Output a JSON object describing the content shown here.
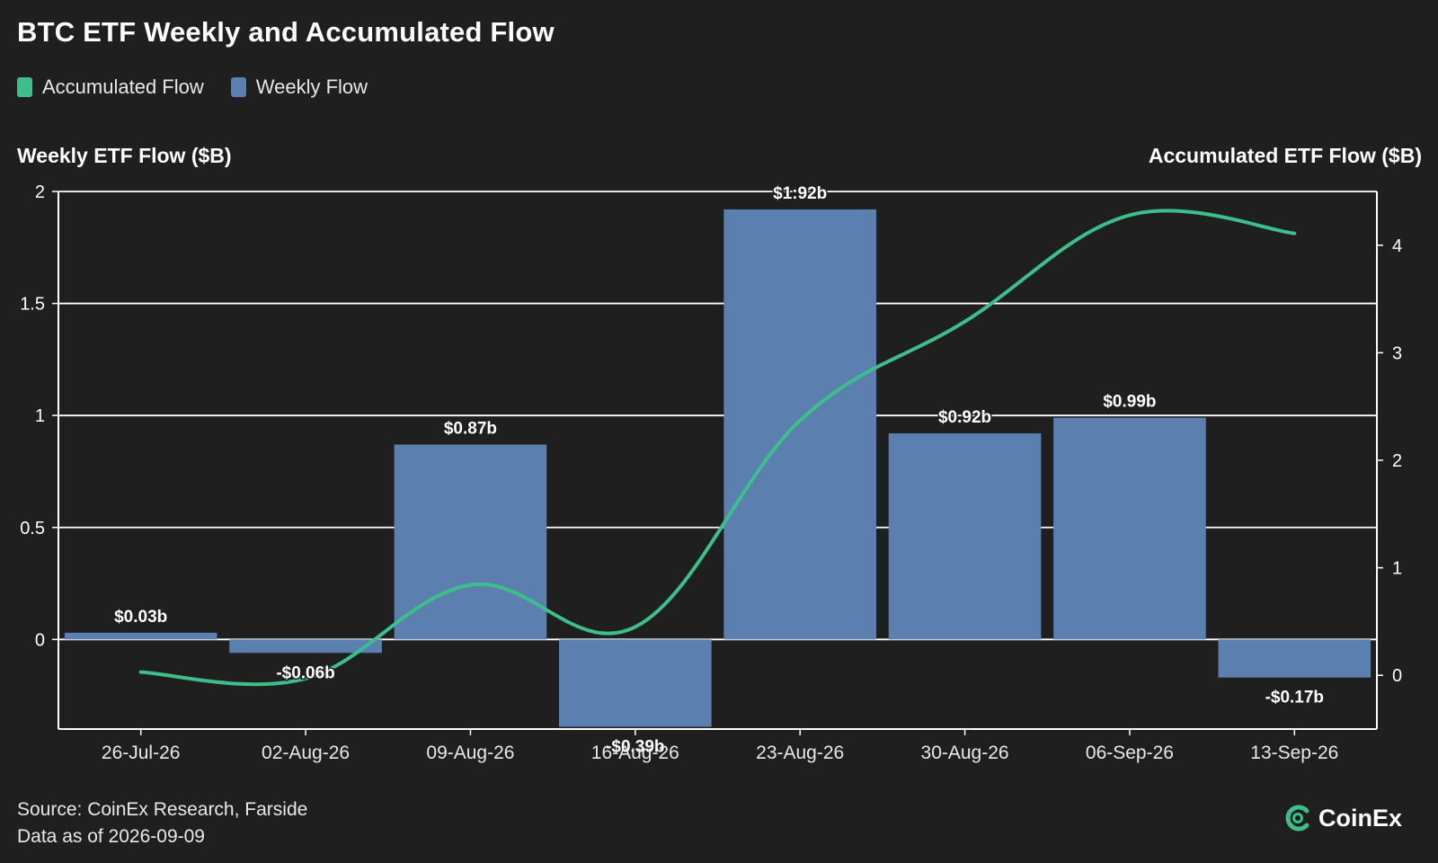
{
  "title": "BTC ETF Weekly and Accumulated Flow",
  "legend": {
    "accumulated_label": "Accumulated Flow",
    "weekly_label": "Weekly Flow"
  },
  "colors": {
    "accumulated": "#3cbf8a",
    "weekly": "#5b80b0",
    "background": "#1f1f1f",
    "grid": "#ffffff"
  },
  "footer": {
    "source": "Source: CoinEx Research, Farside",
    "date": "Data as of 2026-09-09"
  },
  "brand": {
    "name": "CoinEx",
    "icon": "coinex-logo-icon"
  },
  "chart_data": {
    "type": "bar",
    "title": "BTC ETF Weekly and Accumulated Flow",
    "ylabel": "Weekly ETF Flow ($B)",
    "y2label": "Accumulated ETF Flow ($B)",
    "categories": [
      "26-Jul-26",
      "02-Aug-26",
      "09-Aug-26",
      "16-Aug-26",
      "23-Aug-26",
      "30-Aug-26",
      "06-Sep-26",
      "13-Sep-26"
    ],
    "ylim": [
      -0.4,
      2
    ],
    "yticks": [
      0,
      0.5,
      1,
      1.5,
      2
    ],
    "ytick_labels": [
      "0",
      "0.5",
      "1",
      "1.5",
      "2"
    ],
    "y2lim": [
      -0.5,
      4.5
    ],
    "y2ticks": [
      0,
      1,
      2,
      3,
      4
    ],
    "y2tick_labels": [
      "0",
      "1",
      "2",
      "3",
      "4"
    ],
    "grid": true,
    "legend_position": "top-left",
    "series": [
      {
        "name": "Weekly Flow",
        "type": "bar",
        "axis": "left",
        "values": [
          0.03,
          -0.06,
          0.87,
          -0.39,
          1.92,
          0.92,
          0.99,
          -0.17
        ],
        "labels": [
          "$0.03b",
          "-$0.06b",
          "$0.87b",
          "-$0.39b",
          "$1:92b",
          "$0.92b",
          "$0.99b",
          "-$0.17b"
        ]
      },
      {
        "name": "Accumulated Flow",
        "type": "line",
        "axis": "right",
        "values": [
          0.03,
          -0.03,
          0.84,
          0.45,
          2.37,
          3.29,
          4.28,
          4.11
        ]
      }
    ]
  }
}
